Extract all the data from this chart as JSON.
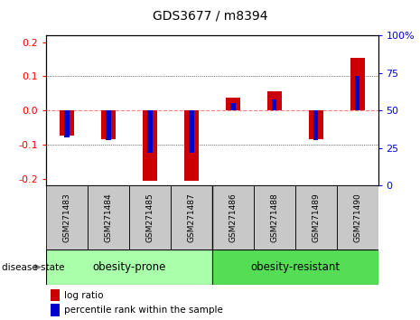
{
  "title": "GDS3677 / m8394",
  "samples": [
    "GSM271483",
    "GSM271484",
    "GSM271485",
    "GSM271487",
    "GSM271486",
    "GSM271488",
    "GSM271489",
    "GSM271490"
  ],
  "log_ratios": [
    -0.075,
    -0.085,
    -0.205,
    -0.205,
    0.038,
    0.055,
    -0.085,
    0.155
  ],
  "percentile_ranks": [
    32,
    30,
    22,
    22,
    55,
    57,
    30,
    73
  ],
  "group_split": 4,
  "group1_label": "obesity-prone",
  "group2_label": "obesity-resistant",
  "group1_color": "#AAFFAA",
  "group2_color": "#55DD55",
  "bar_color_red": "#CC0000",
  "bar_color_blue": "#0000CC",
  "zero_line_color": "#FF8080",
  "ylim": [
    -0.22,
    0.22
  ],
  "yticks_left": [
    -0.2,
    -0.1,
    0.0,
    0.1,
    0.2
  ],
  "yticks_right": [
    0,
    25,
    50,
    75,
    100
  ],
  "bar_width": 0.35,
  "blue_bar_width": 0.12,
  "legend_fontsize": 7.5,
  "title_fontsize": 10,
  "sample_fontsize": 6.5,
  "group_fontsize": 8.5,
  "axis_fontsize": 8
}
